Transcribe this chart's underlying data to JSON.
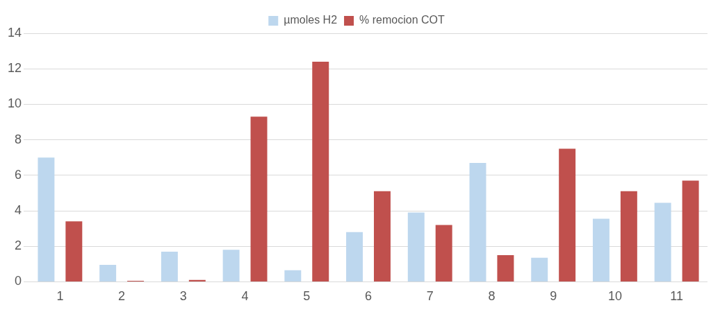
{
  "chart_data": {
    "type": "bar",
    "categories": [
      "1",
      "2",
      "3",
      "4",
      "5",
      "6",
      "7",
      "8",
      "9",
      "10",
      "11"
    ],
    "series": [
      {
        "name": "µmoles H2",
        "color": "#bdd7ee",
        "values": [
          7.0,
          0.95,
          1.7,
          1.8,
          0.65,
          2.8,
          3.9,
          6.7,
          1.35,
          3.55,
          4.45
        ]
      },
      {
        "name": "% remocion COT",
        "color": "#c0504d",
        "values": [
          3.4,
          0.05,
          0.1,
          9.3,
          12.4,
          5.1,
          3.2,
          1.5,
          7.5,
          5.1,
          5.7
        ]
      }
    ],
    "ylim": [
      0,
      14
    ],
    "yticks": [
      0,
      2,
      4,
      6,
      8,
      10,
      12,
      14
    ],
    "grid": "y",
    "legend": "top"
  }
}
